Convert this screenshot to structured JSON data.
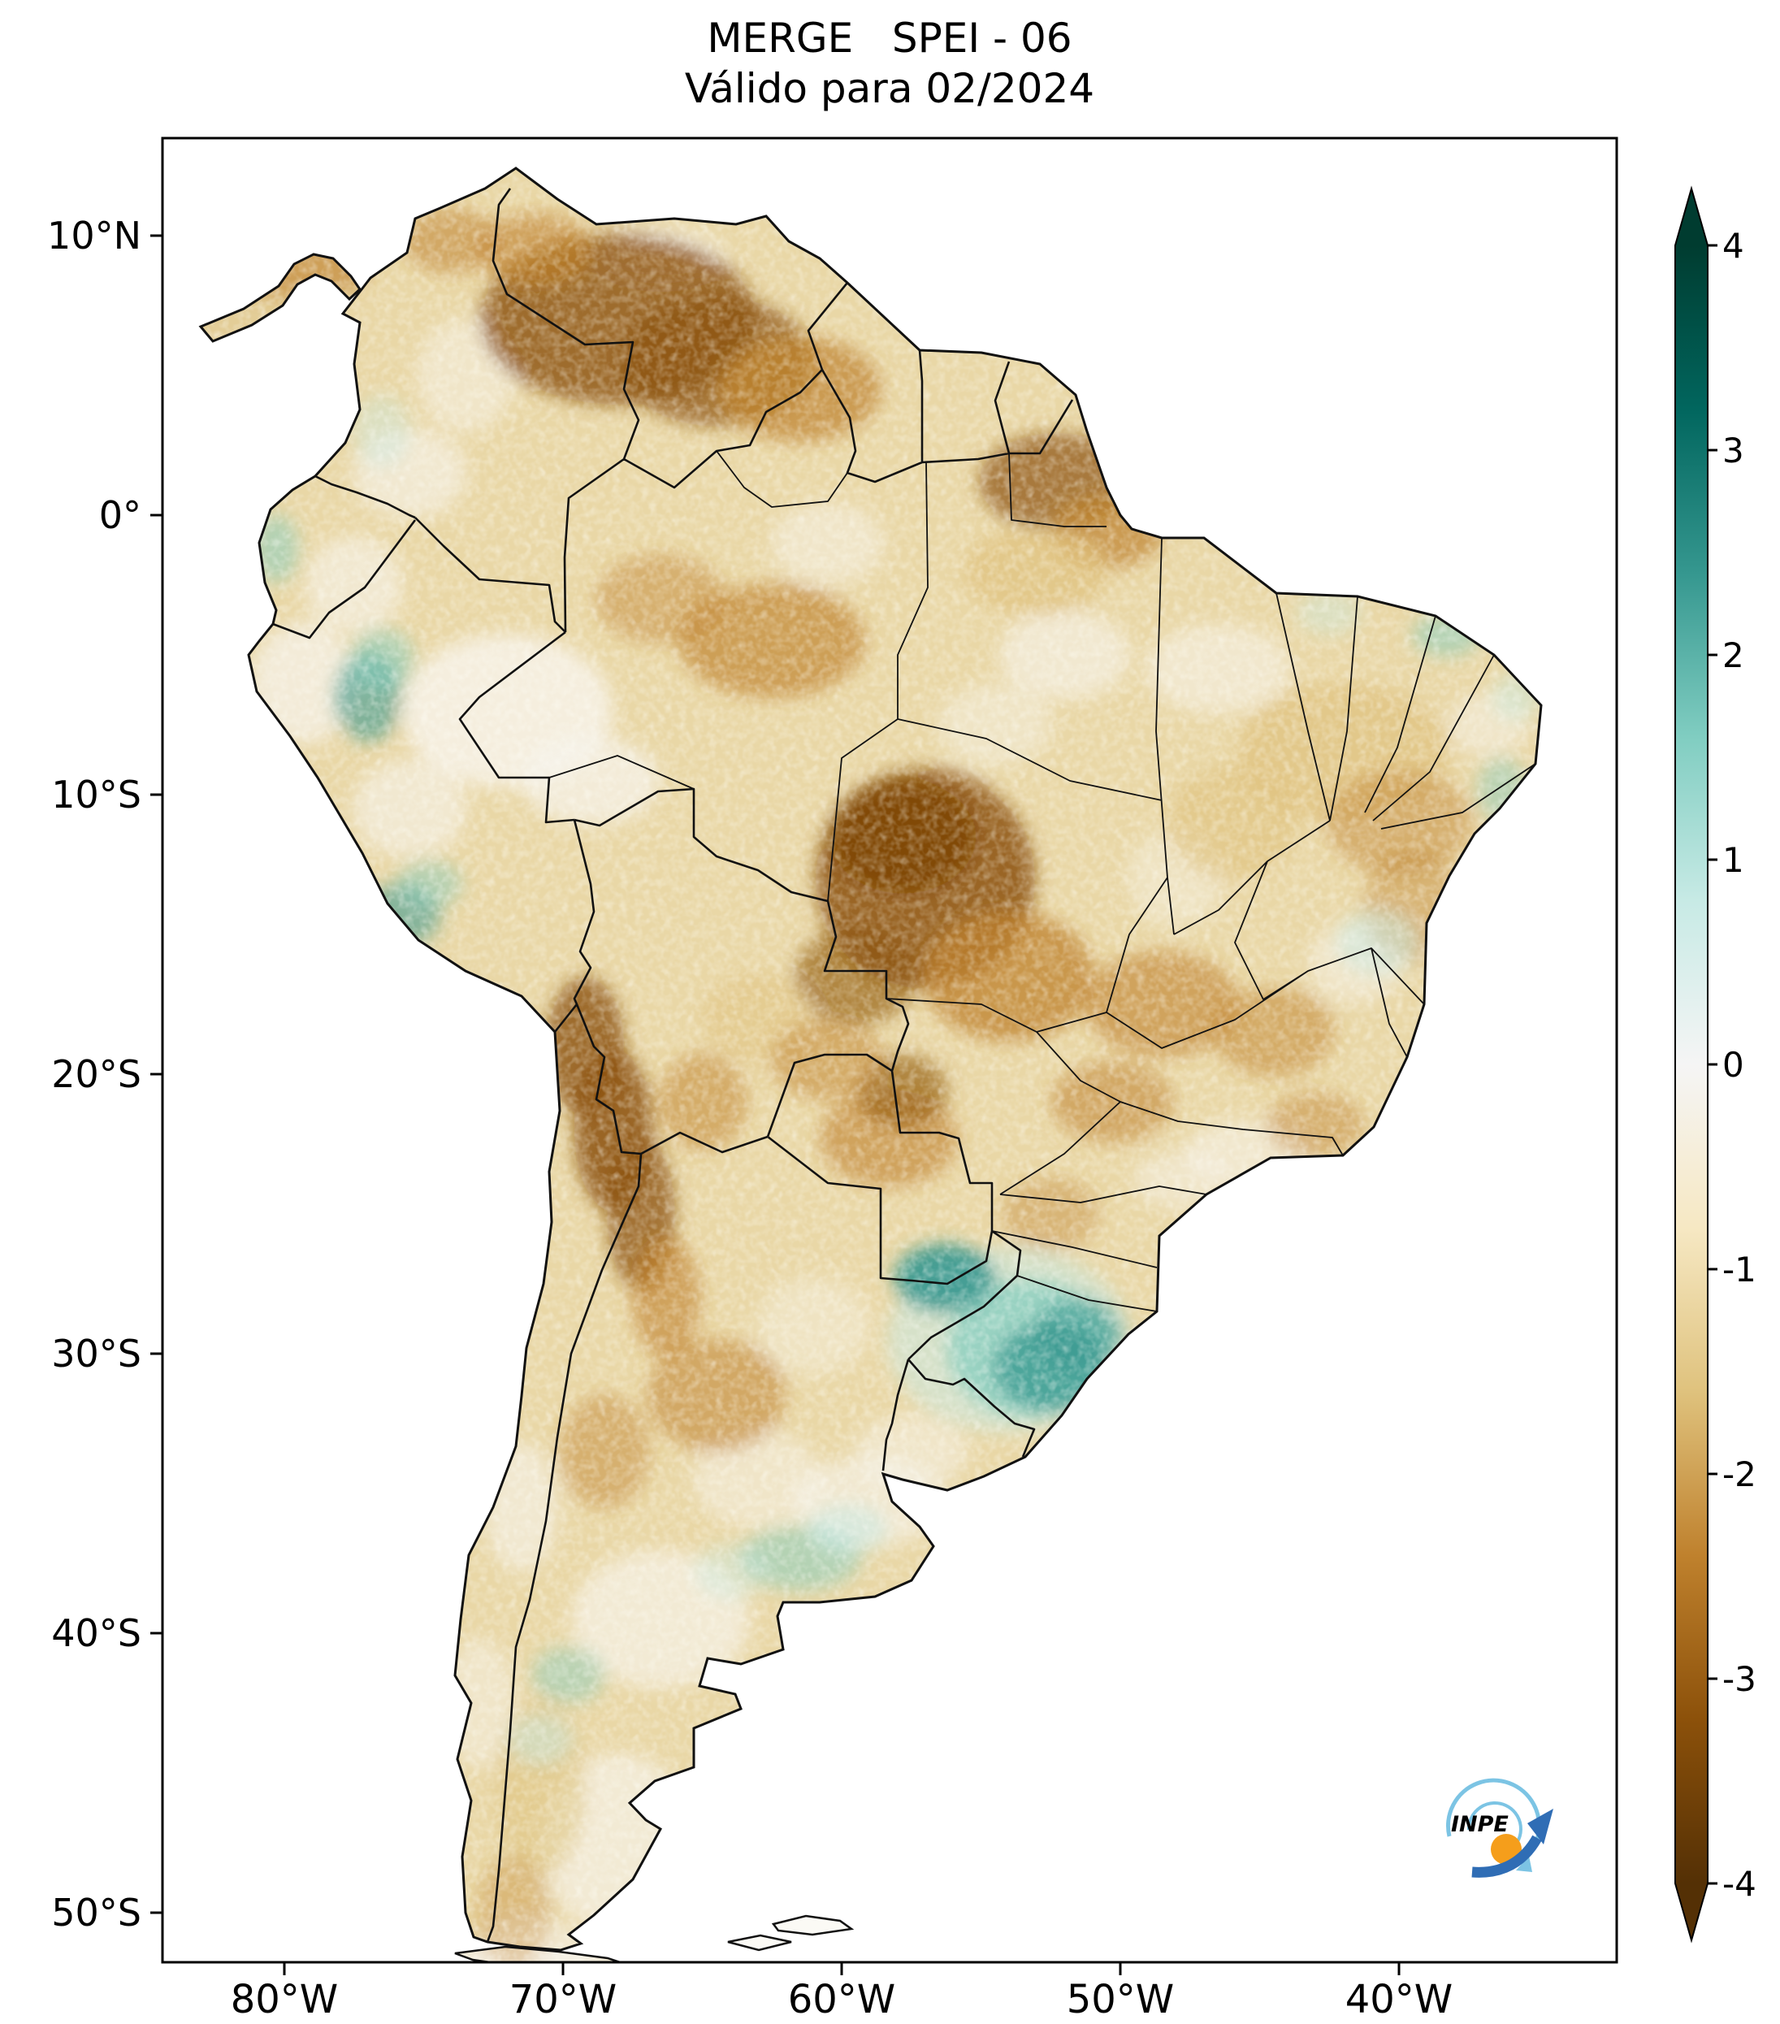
{
  "title": {
    "line1": "MERGE   SPEI - 06",
    "line2": "Válido para 02/2024"
  },
  "axes": {
    "lat_ticks": [
      {
        "label": "10°N",
        "lat": 10
      },
      {
        "label": "0°",
        "lat": 0
      },
      {
        "label": "10°S",
        "lat": -10
      },
      {
        "label": "20°S",
        "lat": -20
      },
      {
        "label": "30°S",
        "lat": -30
      },
      {
        "label": "40°S",
        "lat": -40
      },
      {
        "label": "50°S",
        "lat": -50
      }
    ],
    "lon_ticks": [
      {
        "label": "80°W",
        "lon": -80
      },
      {
        "label": "70°W",
        "lon": -70
      },
      {
        "label": "60°W",
        "lon": -60
      },
      {
        "label": "50°W",
        "lon": -50
      },
      {
        "label": "40°W",
        "lon": -40
      }
    ]
  },
  "colorbar": {
    "range": [
      -4,
      4
    ],
    "ticks": [
      {
        "label": "4",
        "value": 4
      },
      {
        "label": "3",
        "value": 3
      },
      {
        "label": "2",
        "value": 2
      },
      {
        "label": "1",
        "value": 1
      },
      {
        "label": "0",
        "value": 0
      },
      {
        "label": "-1",
        "value": -1
      },
      {
        "label": "-2",
        "value": -2
      },
      {
        "label": "-3",
        "value": -3
      },
      {
        "label": "-4",
        "value": -4
      }
    ],
    "gradient_top_to_bottom": [
      "#003c30",
      "#01665e",
      "#35978f",
      "#80cdc1",
      "#c7eae5",
      "#f5f5f5",
      "#f6e8c3",
      "#dfc27d",
      "#bf812d",
      "#8c510a",
      "#543005"
    ]
  },
  "logo": {
    "text": "INPE"
  },
  "chart_data": {
    "type": "heatmap",
    "title": "MERGE SPEI - 06",
    "subtitle": "Válido para 02/2024",
    "scale": {
      "min": -4,
      "max": 4,
      "colormap": "BrBG (brown = dry / negative SPEI, teal = wet / positive SPEI)"
    },
    "extent": {
      "lon": [
        -84.4,
        -32.2
      ],
      "lat": [
        -51.8,
        13.5
      ]
    }
  },
  "map": {
    "base_color": "#e9d7a6",
    "ocean_color": "#ffffff",
    "palette": {
      "brown3": "#7a4206",
      "brown2": "#8c510a",
      "brown1": "#bf812d",
      "brown0": "#dfc27d",
      "white": "#f7f4ec",
      "teal1": "#c7eae5",
      "teal2": "#80cdc1",
      "teal3": "#35978f"
    },
    "regions": [
      {
        "lon": -72,
        "lat": -7,
        "rx": 130,
        "ry": 95,
        "c": "white",
        "o": 0.8
      },
      {
        "lon": -69,
        "lat": -9.5,
        "rx": 85,
        "ry": 55,
        "c": "white",
        "o": 0.7
      },
      {
        "lon": -75.5,
        "lat": -10.5,
        "rx": 70,
        "ry": 60,
        "c": "white",
        "o": 0.6
      },
      {
        "lon": -79.3,
        "lat": -6,
        "rx": 65,
        "ry": 75,
        "c": "white",
        "o": 0.7
      },
      {
        "lon": -77.5,
        "lat": -2.5,
        "rx": 60,
        "ry": 60,
        "c": "white",
        "o": 0.6
      },
      {
        "lon": -75.5,
        "lat": 1.5,
        "rx": 70,
        "ry": 55,
        "c": "white",
        "o": 0.6
      },
      {
        "lon": -73.5,
        "lat": 5,
        "rx": 60,
        "ry": 70,
        "c": "white",
        "o": 0.5
      },
      {
        "lon": -66.5,
        "lat": 9.3,
        "rx": 80,
        "ry": 35,
        "c": "white",
        "o": 0.5
      },
      {
        "lon": -60.5,
        "lat": -1,
        "rx": 70,
        "ry": 50,
        "c": "white",
        "o": 0.5
      },
      {
        "lon": -52,
        "lat": -5,
        "rx": 80,
        "ry": 55,
        "c": "white",
        "o": 0.6
      },
      {
        "lon": -46.5,
        "lat": -5.5,
        "rx": 90,
        "ry": 55,
        "c": "white",
        "o": 0.55
      },
      {
        "lon": -54.5,
        "lat": -7.5,
        "rx": 70,
        "ry": 50,
        "c": "white",
        "o": 0.45
      },
      {
        "lon": -48,
        "lat": -13,
        "rx": 60,
        "ry": 60,
        "c": "white",
        "o": 0.4
      },
      {
        "lon": -41.5,
        "lat": -16,
        "rx": 60,
        "ry": 50,
        "c": "white",
        "o": 0.5
      },
      {
        "lon": -45.5,
        "lat": -22.8,
        "rx": 75,
        "ry": 40,
        "c": "white",
        "o": 0.55
      },
      {
        "lon": -47.8,
        "lat": -23.8,
        "rx": 60,
        "ry": 35,
        "c": "white",
        "o": 0.5
      },
      {
        "lon": -57.5,
        "lat": -33.5,
        "rx": 70,
        "ry": 45,
        "c": "white",
        "o": 0.5
      },
      {
        "lon": -63,
        "lat": -34.5,
        "rx": 80,
        "ry": 60,
        "c": "white",
        "o": 0.5
      },
      {
        "lon": -61,
        "lat": -29,
        "rx": 70,
        "ry": 60,
        "c": "white",
        "o": 0.4
      },
      {
        "lon": -59,
        "lat": -35.3,
        "rx": 95,
        "ry": 55,
        "c": "white",
        "o": 0.6
      },
      {
        "lon": -66.5,
        "lat": -39.5,
        "rx": 110,
        "ry": 85,
        "c": "white",
        "o": 0.65
      },
      {
        "lon": -68,
        "lat": -47.5,
        "rx": 95,
        "ry": 110,
        "c": "white",
        "o": 0.65
      },
      {
        "lon": -71,
        "lat": -52,
        "rx": 80,
        "ry": 60,
        "c": "white",
        "o": 0.6
      },
      {
        "lon": -71.5,
        "lat": -35.5,
        "rx": 45,
        "ry": 80,
        "c": "white",
        "o": 0.6
      },
      {
        "lon": -73,
        "lat": -42.5,
        "rx": 45,
        "ry": 80,
        "c": "white",
        "o": 0.5
      },
      {
        "lon": -36.8,
        "lat": -7.5,
        "rx": 50,
        "ry": 40,
        "c": "white",
        "o": 0.5
      },
      {
        "lon": -68,
        "lat": 7,
        "rx": 170,
        "ry": 105,
        "c": "brown2",
        "o": 0.8
      },
      {
        "lon": -64.5,
        "lat": 5.5,
        "rx": 120,
        "ry": 80,
        "c": "brown2",
        "o": 0.7
      },
      {
        "lon": -61.5,
        "lat": 4.5,
        "rx": 100,
        "ry": 65,
        "c": "brown1",
        "o": 0.7
      },
      {
        "lon": -71,
        "lat": 9.5,
        "rx": 70,
        "ry": 45,
        "c": "brown1",
        "o": 0.6
      },
      {
        "lon": -74,
        "lat": 9.8,
        "rx": 60,
        "ry": 40,
        "c": "brown1",
        "o": 0.55
      },
      {
        "lon": -79.5,
        "lat": 8.8,
        "rx": 90,
        "ry": 35,
        "c": "brown1",
        "o": 0.6
      },
      {
        "lon": -52.3,
        "lat": 1.2,
        "rx": 95,
        "ry": 60,
        "c": "brown2",
        "o": 0.7
      },
      {
        "lon": -50.5,
        "lat": -0.6,
        "rx": 70,
        "ry": 45,
        "c": "brown1",
        "o": 0.7
      },
      {
        "lon": -53,
        "lat": -2,
        "rx": 90,
        "ry": 55,
        "c": "brown0",
        "o": 0.7
      },
      {
        "lon": -62.5,
        "lat": -4.5,
        "rx": 115,
        "ry": 70,
        "c": "brown1",
        "o": 0.65
      },
      {
        "lon": -66.5,
        "lat": -3,
        "rx": 80,
        "ry": 55,
        "c": "brown1",
        "o": 0.45
      },
      {
        "lon": -57,
        "lat": -13,
        "rx": 135,
        "ry": 135,
        "c": "brown2",
        "o": 0.85
      },
      {
        "lon": -57.8,
        "lat": -11.5,
        "rx": 90,
        "ry": 70,
        "c": "brown3",
        "o": 0.75
      },
      {
        "lon": -54,
        "lat": -16.5,
        "rx": 105,
        "ry": 80,
        "c": "brown1",
        "o": 0.75
      },
      {
        "lon": -59.5,
        "lat": -16.5,
        "rx": 75,
        "ry": 60,
        "c": "brown2",
        "o": 0.6
      },
      {
        "lon": -69.2,
        "lat": -19,
        "rx": 48,
        "ry": 85,
        "c": "brown2",
        "o": 0.8
      },
      {
        "lon": -68.2,
        "lat": -22,
        "rx": 48,
        "ry": 100,
        "c": "brown2",
        "o": 0.85
      },
      {
        "lon": -67.2,
        "lat": -25,
        "rx": 42,
        "ry": 95,
        "c": "brown2",
        "o": 0.75
      },
      {
        "lon": -66.3,
        "lat": -28,
        "rx": 42,
        "ry": 75,
        "c": "brown1",
        "o": 0.6
      },
      {
        "lon": -65,
        "lat": -21,
        "rx": 55,
        "ry": 60,
        "c": "brown1",
        "o": 0.5
      },
      {
        "lon": -63,
        "lat": -18,
        "rx": 70,
        "ry": 55,
        "c": "brown0",
        "o": 0.5
      },
      {
        "lon": -58.3,
        "lat": -22.3,
        "rx": 85,
        "ry": 60,
        "c": "brown1",
        "o": 0.6
      },
      {
        "lon": -57.8,
        "lat": -20.6,
        "rx": 55,
        "ry": 45,
        "c": "brown2",
        "o": 0.6
      },
      {
        "lon": -60.5,
        "lat": -19.5,
        "rx": 70,
        "ry": 50,
        "c": "brown1",
        "o": 0.5
      },
      {
        "lon": -48.5,
        "lat": -17.5,
        "rx": 95,
        "ry": 65,
        "c": "brown1",
        "o": 0.6
      },
      {
        "lon": -44.5,
        "lat": -18.5,
        "rx": 75,
        "ry": 55,
        "c": "brown1",
        "o": 0.5
      },
      {
        "lon": -50.3,
        "lat": -21,
        "rx": 75,
        "ry": 50,
        "c": "brown1",
        "o": 0.55
      },
      {
        "lon": -43,
        "lat": -21.8,
        "rx": 60,
        "ry": 40,
        "c": "brown1",
        "o": 0.45
      },
      {
        "lon": -46,
        "lat": -11,
        "rx": 80,
        "ry": 70,
        "c": "brown0",
        "o": 0.6
      },
      {
        "lon": -42,
        "lat": -8.5,
        "rx": 130,
        "ry": 85,
        "c": "brown0",
        "o": 0.7
      },
      {
        "lon": -40,
        "lat": -11,
        "rx": 90,
        "ry": 65,
        "c": "brown1",
        "o": 0.45
      },
      {
        "lon": -39.5,
        "lat": -14,
        "rx": 60,
        "ry": 70,
        "c": "brown1",
        "o": 0.4
      },
      {
        "lon": -52.5,
        "lat": -25,
        "rx": 60,
        "ry": 45,
        "c": "brown1",
        "o": 0.4
      },
      {
        "lon": -64.5,
        "lat": -31.5,
        "rx": 85,
        "ry": 70,
        "c": "brown1",
        "o": 0.55
      },
      {
        "lon": -68.5,
        "lat": -33.5,
        "rx": 55,
        "ry": 70,
        "c": "brown1",
        "o": 0.45
      },
      {
        "lon": -70.8,
        "lat": -45.5,
        "rx": 55,
        "ry": 110,
        "c": "brown0",
        "o": 0.55
      },
      {
        "lon": -71.8,
        "lat": -50,
        "rx": 45,
        "ry": 70,
        "c": "brown1",
        "o": 0.35
      },
      {
        "lon": -54,
        "lat": -29.5,
        "rx": 150,
        "ry": 115,
        "c": "teal1",
        "o": 0.55
      },
      {
        "lon": -53.3,
        "lat": -29.8,
        "rx": 100,
        "ry": 85,
        "c": "teal2",
        "o": 0.7
      },
      {
        "lon": -52.5,
        "lat": -30.5,
        "rx": 70,
        "ry": 55,
        "c": "teal3",
        "o": 0.75
      },
      {
        "lon": -51.5,
        "lat": -29.3,
        "rx": 55,
        "ry": 45,
        "c": "teal3",
        "o": 0.6
      },
      {
        "lon": -56.3,
        "lat": -27.3,
        "rx": 62,
        "ry": 42,
        "c": "teal3",
        "o": 0.9
      },
      {
        "lon": -77,
        "lat": -6.5,
        "rx": 42,
        "ry": 55,
        "c": "teal3",
        "o": 0.6
      },
      {
        "lon": -76.5,
        "lat": -5.2,
        "rx": 40,
        "ry": 40,
        "c": "teal2",
        "o": 0.5
      },
      {
        "lon": -75.8,
        "lat": -14.3,
        "rx": 48,
        "ry": 38,
        "c": "teal3",
        "o": 0.55
      },
      {
        "lon": -74.8,
        "lat": -13.2,
        "rx": 40,
        "ry": 30,
        "c": "teal2",
        "o": 0.45
      },
      {
        "lon": -80.3,
        "lat": -1.2,
        "rx": 28,
        "ry": 42,
        "c": "teal2",
        "o": 0.5
      },
      {
        "lon": -76.5,
        "lat": 3,
        "rx": 35,
        "ry": 45,
        "c": "teal1",
        "o": 0.4
      },
      {
        "lon": -61.5,
        "lat": -37.3,
        "rx": 75,
        "ry": 40,
        "c": "teal2",
        "o": 0.5
      },
      {
        "lon": -59.8,
        "lat": -36.3,
        "rx": 50,
        "ry": 32,
        "c": "teal1",
        "o": 0.55
      },
      {
        "lon": -64,
        "lat": -37.8,
        "rx": 45,
        "ry": 35,
        "c": "teal1",
        "o": 0.4
      },
      {
        "lon": -69.8,
        "lat": -41.5,
        "rx": 45,
        "ry": 35,
        "c": "teal2",
        "o": 0.45
      },
      {
        "lon": -70.8,
        "lat": -43.8,
        "rx": 40,
        "ry": 32,
        "c": "teal1",
        "o": 0.5
      },
      {
        "lon": -38.3,
        "lat": -4.3,
        "rx": 42,
        "ry": 26,
        "c": "teal2",
        "o": 0.5
      },
      {
        "lon": -36.3,
        "lat": -9.8,
        "rx": 30,
        "ry": 40,
        "c": "teal2",
        "o": 0.45
      },
      {
        "lon": -40.8,
        "lat": -15.3,
        "rx": 50,
        "ry": 40,
        "c": "teal1",
        "o": 0.5
      },
      {
        "lon": -42.5,
        "lat": -3.5,
        "rx": 40,
        "ry": 28,
        "c": "teal1",
        "o": 0.4
      },
      {
        "lon": -35.8,
        "lat": -6.5,
        "rx": 30,
        "ry": 30,
        "c": "teal1",
        "o": 0.45
      }
    ]
  }
}
